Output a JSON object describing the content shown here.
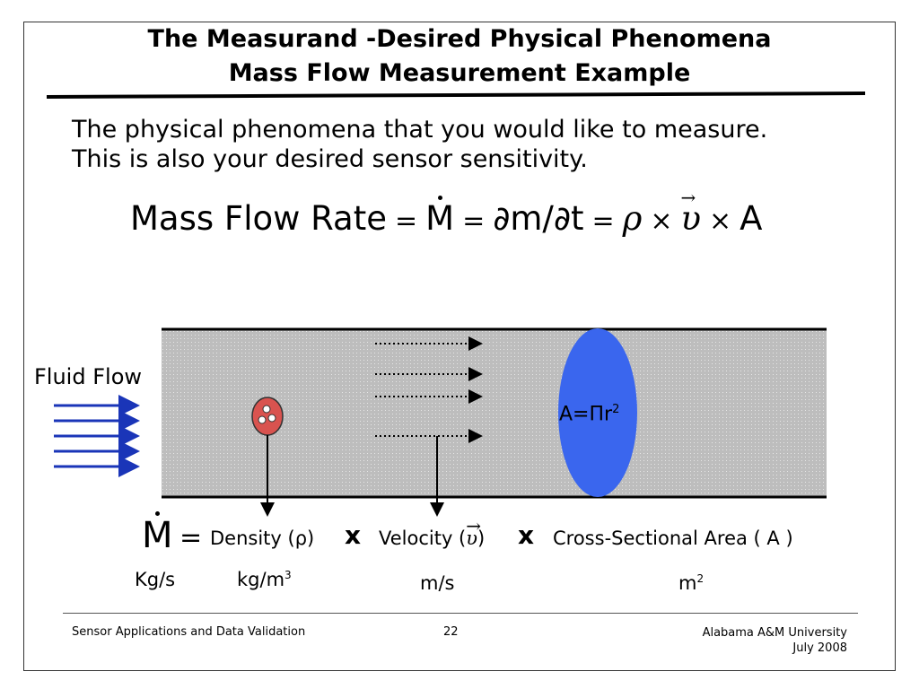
{
  "title": {
    "line1": "The Measurand -Desired Physical Phenomena",
    "line2": "Mass Flow Measurement Example"
  },
  "intro": {
    "line1": "The physical phenomena that you would like to measure.",
    "line2": "This is also your desired sensor sensitivity."
  },
  "equation": {
    "lhs": "Mass Flow Rate",
    "eq": "=",
    "mdot": "M",
    "partial": "∂m/∂t",
    "rho": "ρ",
    "times": "×",
    "v": "υ",
    "area": "A"
  },
  "diagram": {
    "fluid_label": "Fluid Flow",
    "area_label": "A=Πr",
    "area_exp": "2",
    "colors": {
      "pipe": "#c0c0c0",
      "area_ellipse": "#3a66ee",
      "particle": "#d9534f",
      "flow_arrows": "#1a35b8"
    }
  },
  "relation": {
    "mdot": "M",
    "eq": "=",
    "density": "Density (ρ)",
    "x1": "x",
    "velocity_open": "Velocity (",
    "velocity_sym": "υ",
    "velocity_close": ")",
    "x2": "x",
    "area": "Cross-Sectional Area ( A )"
  },
  "units": {
    "mdot": "Kg/s",
    "density": "kg/m",
    "density_exp": "3",
    "velocity": "m/s",
    "area": "m",
    "area_exp": "2"
  },
  "footer": {
    "left": "Sensor Applications and Data Validation",
    "page": "22",
    "org": "Alabama A&M University",
    "date": "July 2008"
  }
}
